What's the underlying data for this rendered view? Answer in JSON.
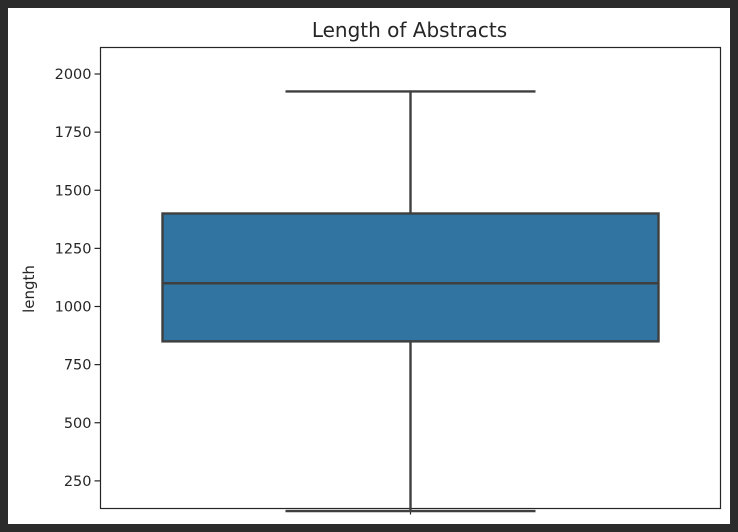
{
  "chart_data": {
    "type": "box",
    "title": "Length of Abstracts",
    "xlabel": "",
    "ylabel": "length",
    "ylim": [
      80,
      2010
    ],
    "yticks": [
      250,
      500,
      750,
      1000,
      1250,
      1500,
      1750,
      2000
    ],
    "grid": false,
    "box": {
      "whisker_low": 120,
      "q1": 850,
      "median": 1100,
      "q3": 1400,
      "whisker_high": 1925
    },
    "colors": {
      "box_fill": "#3274a1",
      "line": "#3f3f3f",
      "axis": "#262626",
      "frame": "#2b2b2b"
    }
  }
}
